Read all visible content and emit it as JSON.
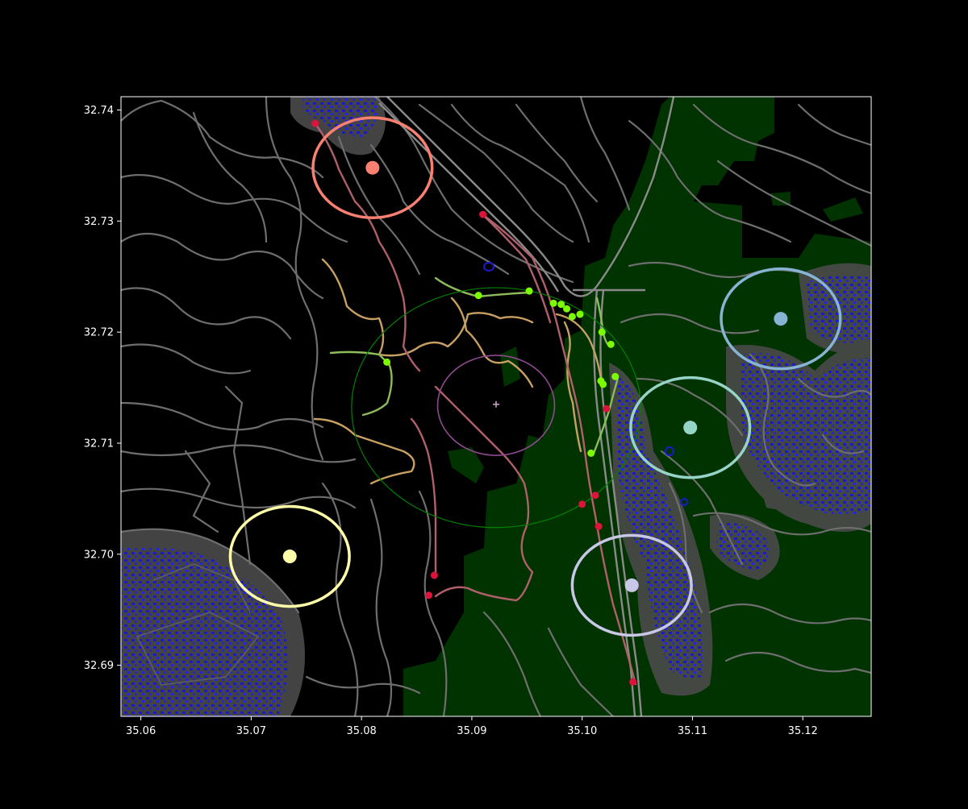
{
  "chart_data": {
    "type": "map",
    "xlim": [
      35.0582,
      35.1262
    ],
    "ylim": [
      32.6854,
      32.7412
    ],
    "x_ticks": [
      "35.06",
      "35.07",
      "35.08",
      "35.09",
      "35.10",
      "35.11",
      "35.12"
    ],
    "x_tick_values": [
      35.06,
      35.07,
      35.08,
      35.09,
      35.1,
      35.11,
      35.12
    ],
    "y_ticks": [
      "32.69",
      "32.70",
      "32.71",
      "32.72",
      "32.73",
      "32.74"
    ],
    "y_tick_values": [
      32.69,
      32.7,
      32.71,
      32.72,
      32.73,
      32.74
    ],
    "grid": false,
    "background": "#000000",
    "colors": {
      "roads": "#6e6e6e",
      "vegetation": "#003300",
      "buildings": "#1a1acc",
      "building_buffer": "#555555",
      "trail_main": "#c9a063",
      "trail_red": "#b0606a",
      "trail_green": "#8fbc5a",
      "waypoint_green": "#7cfc00",
      "waypoint_red": "#dc143c",
      "center_ring": "#008000",
      "inner_ring": "#8e4a8e"
    },
    "center": {
      "lon": 35.0922,
      "lat": 32.7135,
      "marker": "plus",
      "color": "#c8a0c8"
    },
    "rings": [
      {
        "lon": 35.0922,
        "lat": 32.7132,
        "rx_deg": 0.0131,
        "ry_deg": 0.0108,
        "color": "#008000",
        "width": 1.2
      },
      {
        "lon": 35.0922,
        "lat": 32.7134,
        "rx_deg": 0.0053,
        "ry_deg": 0.0045,
        "color": "#8e4a8e",
        "width": 1.6
      }
    ],
    "clusters": [
      {
        "lon": 35.081,
        "lat": 32.7348,
        "rx_deg": 0.0054,
        "ry_deg": 0.0045,
        "color": "#fa8072"
      },
      {
        "lon": 35.118,
        "lat": 32.7212,
        "rx_deg": 0.0054,
        "ry_deg": 0.0045,
        "color": "#87b4d4"
      },
      {
        "lon": 35.1098,
        "lat": 32.7114,
        "rx_deg": 0.0054,
        "ry_deg": 0.0045,
        "color": "#96d4c8"
      },
      {
        "lon": 35.0735,
        "lat": 32.6998,
        "rx_deg": 0.0054,
        "ry_deg": 0.0045,
        "color": "#ffffaa"
      },
      {
        "lon": 35.1045,
        "lat": 32.6972,
        "rx_deg": 0.0054,
        "ry_deg": 0.0045,
        "color": "#c8c8e6"
      }
    ],
    "waypoints_green": [
      [
        35.0823,
        32.7173
      ],
      [
        35.0906,
        32.7233
      ],
      [
        35.0952,
        32.7237
      ],
      [
        35.0974,
        32.7226
      ],
      [
        35.0981,
        32.7225
      ],
      [
        35.0986,
        32.7221
      ],
      [
        35.0991,
        32.7214
      ],
      [
        35.0998,
        32.7216
      ],
      [
        35.1018,
        32.72
      ],
      [
        35.1026,
        32.7189
      ],
      [
        35.1017,
        32.7156
      ],
      [
        35.1019,
        32.7153
      ],
      [
        35.103,
        32.716
      ],
      [
        35.1008,
        32.7091
      ]
    ],
    "waypoints_red": [
      [
        35.0758,
        32.7388
      ],
      [
        35.091,
        32.7306
      ],
      [
        35.1022,
        32.7131
      ],
      [
        35.1012,
        32.7053
      ],
      [
        35.1,
        32.7045
      ],
      [
        35.1015,
        32.7025
      ],
      [
        35.0866,
        32.6981
      ],
      [
        35.0861,
        32.6963
      ],
      [
        35.1046,
        32.6885
      ]
    ]
  }
}
